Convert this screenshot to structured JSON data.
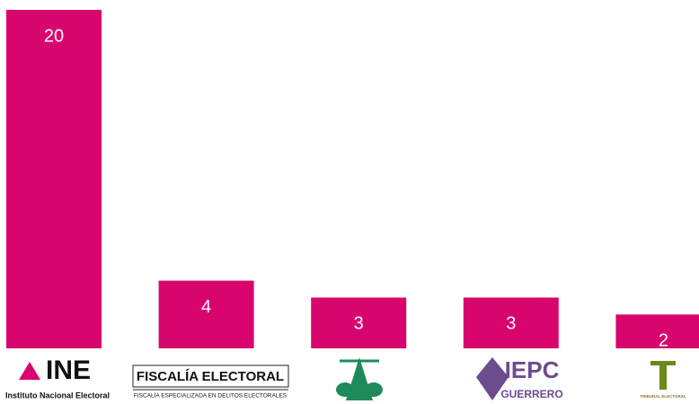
{
  "chart_data": {
    "type": "bar",
    "categories": [
      "INE",
      "FISCALÍA ELECTORAL",
      null,
      "IEPC",
      "TRIBUNAL ELECTORAL"
    ],
    "category_subtitles": [
      "Instituto Nacional Electoral",
      "FISCALÍA ESPECIALIZADA EN DELITOS ELECTORALES",
      null,
      "GUERRERO",
      null
    ],
    "values": [
      20,
      4,
      3,
      3,
      2
    ],
    "color": "#d9056f"
  }
}
